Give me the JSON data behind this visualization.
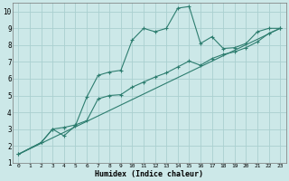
{
  "xlabel": "Humidex (Indice chaleur)",
  "bg_color": "#cce8e8",
  "grid_color": "#aad0d0",
  "line_color": "#2d7d6f",
  "xlim": [
    -0.5,
    23.5
  ],
  "ylim": [
    1,
    10.5
  ],
  "xticks": [
    0,
    1,
    2,
    3,
    4,
    5,
    6,
    7,
    8,
    9,
    10,
    11,
    12,
    13,
    14,
    15,
    16,
    17,
    18,
    19,
    20,
    21,
    22,
    23
  ],
  "yticks": [
    1,
    2,
    3,
    4,
    5,
    6,
    7,
    8,
    9,
    10
  ],
  "line1_x": [
    0,
    2,
    3,
    4,
    5,
    6,
    7,
    8,
    9,
    10,
    11,
    12,
    13,
    14,
    15,
    16,
    17,
    18,
    19,
    20,
    21,
    22,
    23
  ],
  "line1_y": [
    1.5,
    2.2,
    3.0,
    2.6,
    3.2,
    4.9,
    6.2,
    6.4,
    6.5,
    8.3,
    9.0,
    8.8,
    9.0,
    10.2,
    10.3,
    8.1,
    8.5,
    7.8,
    7.85,
    8.1,
    8.8,
    9.0,
    9.0
  ],
  "line2_x": [
    0,
    2,
    3,
    4,
    5,
    6,
    7,
    8,
    9,
    10,
    11,
    12,
    13,
    14,
    15,
    16,
    17,
    18,
    19,
    20,
    21,
    22,
    23
  ],
  "line2_y": [
    1.5,
    2.2,
    3.0,
    3.1,
    3.25,
    3.5,
    4.8,
    5.0,
    5.05,
    5.5,
    5.8,
    6.1,
    6.35,
    6.7,
    7.05,
    6.8,
    7.2,
    7.45,
    7.6,
    7.85,
    8.2,
    8.7,
    9.0
  ],
  "line3_x": [
    0,
    23
  ],
  "line3_y": [
    1.5,
    9.0
  ]
}
